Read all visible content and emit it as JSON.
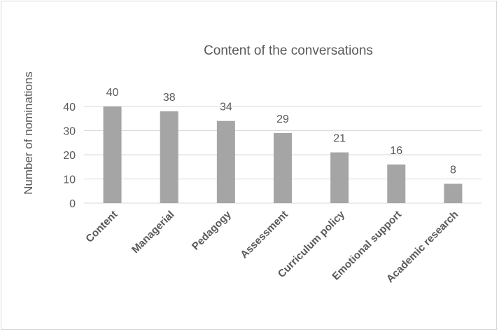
{
  "chart_data": {
    "type": "bar",
    "title": "Content of the conversations",
    "ylabel": "Number of nominations",
    "xlabel": "",
    "categories": [
      "Content",
      "Managerial",
      "Pedagogy",
      "Assessment",
      "Curriculum policy",
      "Emotional support",
      "Academic research"
    ],
    "values": [
      40,
      38,
      34,
      29,
      21,
      16,
      8
    ],
    "yticks": [
      0,
      10,
      20,
      30,
      40
    ],
    "ylim": [
      0,
      40
    ],
    "grid": true,
    "legend": "none",
    "bar_color": "#a5a5a5",
    "gridline_color": "#d9d9d9",
    "text_color": "#595959"
  }
}
